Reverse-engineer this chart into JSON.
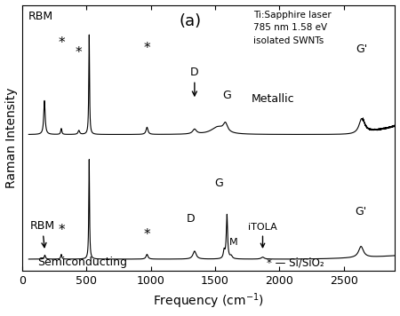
{
  "title_text": "(a)",
  "annotation_text": "Ti:Sapphire laser\n785 nm 1.58 eV\nisolated SWNTs",
  "xlabel": "Frequency (cm$^{-1}$)",
  "ylabel": "Raman Intensity",
  "xmin": 50,
  "xmax": 2900,
  "metallic_label": "Metallic",
  "semiconducting_label": "Semiconducting",
  "legend_text": "* — Si/SiO₂",
  "background_color": "#ffffff",
  "line_color": "#000000"
}
